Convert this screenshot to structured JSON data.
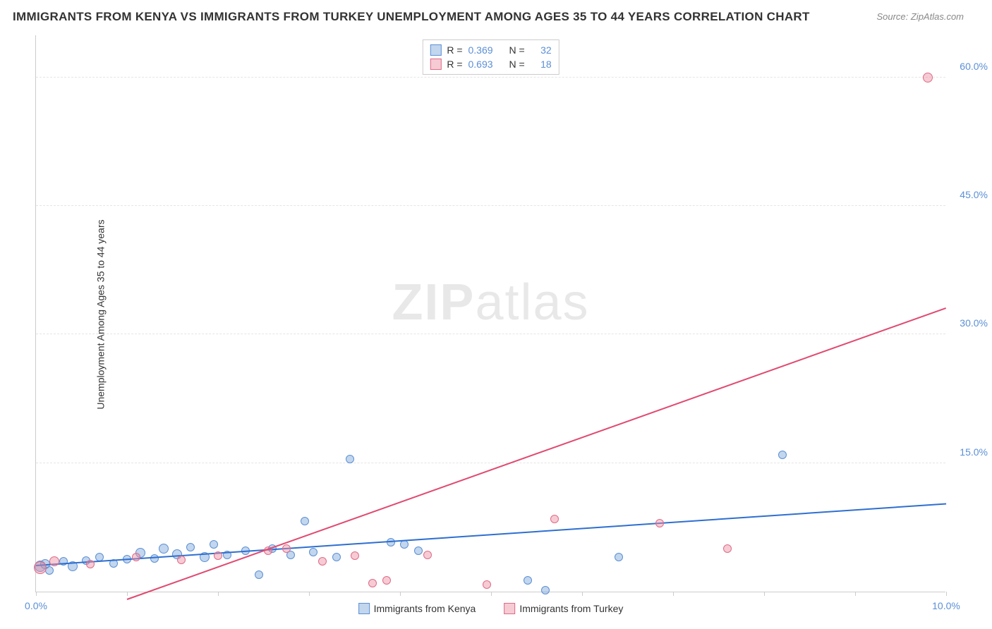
{
  "title": "IMMIGRANTS FROM KENYA VS IMMIGRANTS FROM TURKEY UNEMPLOYMENT AMONG AGES 35 TO 44 YEARS CORRELATION CHART",
  "source": "Source: ZipAtlas.com",
  "ylabel": "Unemployment Among Ages 35 to 44 years",
  "watermark_a": "ZIP",
  "watermark_b": "atlas",
  "chart": {
    "xlim": [
      0,
      10
    ],
    "ylim": [
      0,
      65
    ],
    "xtick_positions": [
      0,
      1,
      2,
      3,
      4,
      5,
      6,
      7,
      8,
      9,
      10
    ],
    "xtick_labels": {
      "0": "0.0%",
      "10": "10.0%"
    },
    "ytick_positions": [
      15,
      30,
      45,
      60
    ],
    "ytick_labels": {
      "15": "15.0%",
      "30": "30.0%",
      "45": "45.0%",
      "60": "60.0%"
    },
    "grid_color": "#e5e5e5",
    "axis_color": "#cccccc",
    "background": "#ffffff",
    "label_color": "#5b8fd6",
    "series": [
      {
        "name": "Immigrants from Kenya",
        "fill": "rgba(120,165,216,0.45)",
        "stroke": "#5b8fd6",
        "line_color": "#2e6fd0",
        "R": "0.369",
        "N": "32",
        "trend": {
          "x1": 0,
          "y1": 3.0,
          "x2": 10,
          "y2": 10.2
        },
        "points": [
          {
            "x": 0.05,
            "y": 3.0,
            "r": 8
          },
          {
            "x": 0.1,
            "y": 3.2,
            "r": 7
          },
          {
            "x": 0.15,
            "y": 2.5,
            "r": 6
          },
          {
            "x": 0.3,
            "y": 3.5,
            "r": 6
          },
          {
            "x": 0.4,
            "y": 3.0,
            "r": 7
          },
          {
            "x": 0.55,
            "y": 3.6,
            "r": 6
          },
          {
            "x": 0.7,
            "y": 4.0,
            "r": 6
          },
          {
            "x": 0.85,
            "y": 3.3,
            "r": 6
          },
          {
            "x": 1.0,
            "y": 3.8,
            "r": 6
          },
          {
            "x": 1.15,
            "y": 4.5,
            "r": 7
          },
          {
            "x": 1.3,
            "y": 3.9,
            "r": 6
          },
          {
            "x": 1.4,
            "y": 5.0,
            "r": 7
          },
          {
            "x": 1.55,
            "y": 4.4,
            "r": 7
          },
          {
            "x": 1.7,
            "y": 5.2,
            "r": 6
          },
          {
            "x": 1.85,
            "y": 4.0,
            "r": 7
          },
          {
            "x": 1.95,
            "y": 5.5,
            "r": 6
          },
          {
            "x": 2.1,
            "y": 4.3,
            "r": 6
          },
          {
            "x": 2.3,
            "y": 4.8,
            "r": 6
          },
          {
            "x": 2.45,
            "y": 2.0,
            "r": 6
          },
          {
            "x": 2.6,
            "y": 5.0,
            "r": 6
          },
          {
            "x": 2.8,
            "y": 4.3,
            "r": 6
          },
          {
            "x": 2.95,
            "y": 8.2,
            "r": 6
          },
          {
            "x": 3.05,
            "y": 4.6,
            "r": 6
          },
          {
            "x": 3.3,
            "y": 4.0,
            "r": 6
          },
          {
            "x": 3.45,
            "y": 15.5,
            "r": 6
          },
          {
            "x": 3.9,
            "y": 5.8,
            "r": 6
          },
          {
            "x": 4.05,
            "y": 5.5,
            "r": 6
          },
          {
            "x": 4.2,
            "y": 4.8,
            "r": 6
          },
          {
            "x": 5.4,
            "y": 1.3,
            "r": 6
          },
          {
            "x": 5.6,
            "y": 0.2,
            "r": 6
          },
          {
            "x": 6.4,
            "y": 4.0,
            "r": 6
          },
          {
            "x": 8.2,
            "y": 16.0,
            "r": 6
          }
        ]
      },
      {
        "name": "Immigrants from Turkey",
        "fill": "rgba(235,140,160,0.45)",
        "stroke": "#e06a87",
        "line_color": "#e04a70",
        "R": "0.693",
        "N": "18",
        "trend": {
          "x1": 1.0,
          "y1": -1.0,
          "x2": 10,
          "y2": 33.0
        },
        "points": [
          {
            "x": 0.05,
            "y": 2.8,
            "r": 9
          },
          {
            "x": 0.2,
            "y": 3.5,
            "r": 7
          },
          {
            "x": 0.6,
            "y": 3.2,
            "r": 6
          },
          {
            "x": 1.1,
            "y": 4.0,
            "r": 6
          },
          {
            "x": 1.6,
            "y": 3.7,
            "r": 6
          },
          {
            "x": 2.0,
            "y": 4.2,
            "r": 6
          },
          {
            "x": 2.55,
            "y": 4.8,
            "r": 6
          },
          {
            "x": 2.75,
            "y": 5.0,
            "r": 6
          },
          {
            "x": 3.15,
            "y": 3.5,
            "r": 6
          },
          {
            "x": 3.5,
            "y": 4.2,
            "r": 6
          },
          {
            "x": 3.7,
            "y": 1.0,
            "r": 6
          },
          {
            "x": 3.85,
            "y": 1.3,
            "r": 6
          },
          {
            "x": 4.3,
            "y": 4.3,
            "r": 6
          },
          {
            "x": 4.95,
            "y": 0.8,
            "r": 6
          },
          {
            "x": 5.7,
            "y": 8.5,
            "r": 6
          },
          {
            "x": 6.85,
            "y": 8.0,
            "r": 6
          },
          {
            "x": 7.6,
            "y": 5.0,
            "r": 6
          },
          {
            "x": 9.8,
            "y": 60.0,
            "r": 7
          }
        ]
      }
    ]
  },
  "stats_labels": {
    "R": "R =",
    "N": "N ="
  }
}
